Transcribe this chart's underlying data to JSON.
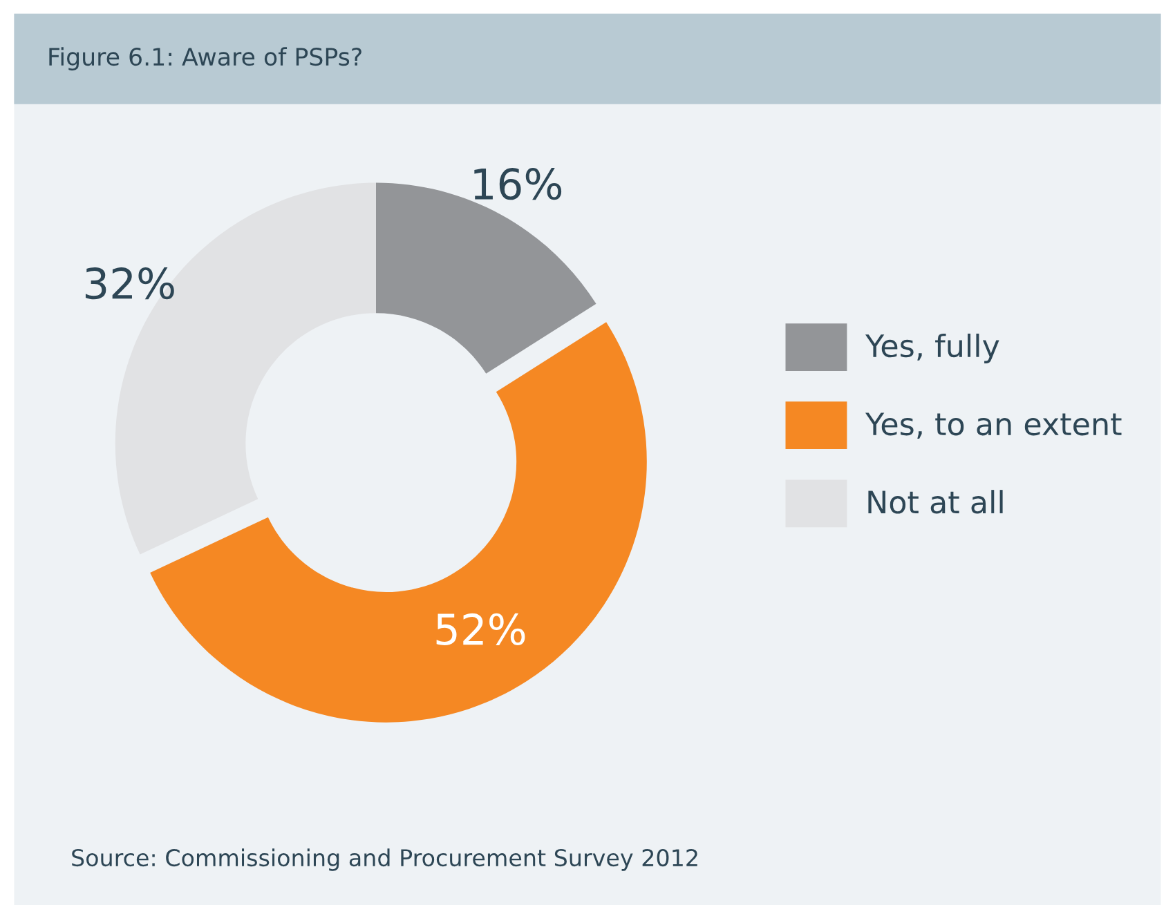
{
  "chart_data": {
    "type": "donut",
    "title": "Figure 6.1: Aware of PSPs?",
    "categories": [
      "Yes, fully",
      "Yes, to an extent",
      "Not at all"
    ],
    "values": [
      16,
      52,
      32
    ],
    "colors": [
      "#939598",
      "#f58823",
      "#e1e2e4"
    ],
    "value_labels": [
      "16%",
      "52%",
      "32%"
    ],
    "legend": "right",
    "annotations": [
      "Source: Commissioning and Procurement Survey 2012"
    ]
  }
}
